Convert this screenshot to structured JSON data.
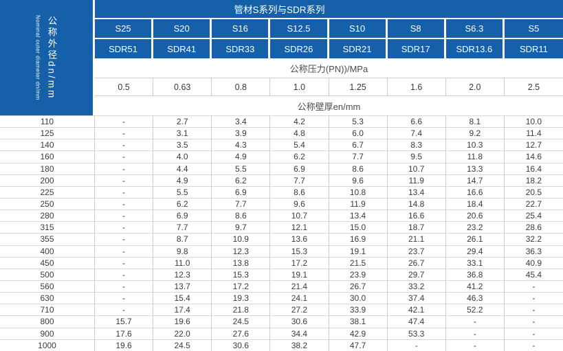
{
  "colors": {
    "header_blue": "#1560a8",
    "grid_line": "#cdcdcd",
    "text_dark": "#3a3a3a"
  },
  "left_header": {
    "cn_label": "公称外径dn/mm",
    "en_label": "Nominal outer diameter dn/mm"
  },
  "table": {
    "title": "管材S系列与SDR系列",
    "pressure_row_label": "公称压力(PN))/MPa",
    "thickness_row_label": "公称壁厚en/mm",
    "columns": [
      {
        "s": "S25",
        "sdr": "SDR51",
        "pn": "0.5"
      },
      {
        "s": "S20",
        "sdr": "SDR41",
        "pn": "0.63"
      },
      {
        "s": "S16",
        "sdr": "SDR33",
        "pn": "0.8"
      },
      {
        "s": "S12.5",
        "sdr": "SDR26",
        "pn": "1.0"
      },
      {
        "s": "S10",
        "sdr": "SDR21",
        "pn": "1.25"
      },
      {
        "s": "S8",
        "sdr": "SDR17",
        "pn": "1.6"
      },
      {
        "s": "S6.3",
        "sdr": "SDR13.6",
        "pn": "2.0"
      },
      {
        "s": "S5",
        "sdr": "SDR11",
        "pn": "2.5"
      }
    ],
    "rows": [
      {
        "dn": "110",
        "en_values": [
          "-",
          "2.7",
          "3.4",
          "4.2",
          "5.3",
          "6.6",
          "8.1",
          "10.0"
        ]
      },
      {
        "dn": "125",
        "en_values": [
          "-",
          "3.1",
          "3.9",
          "4.8",
          "6.0",
          "7.4",
          "9.2",
          "11.4"
        ]
      },
      {
        "dn": "140",
        "en_values": [
          "-",
          "3.5",
          "4.3",
          "5.4",
          "6.7",
          "8.3",
          "10.3",
          "12.7"
        ]
      },
      {
        "dn": "160",
        "en_values": [
          "-",
          "4.0",
          "4.9",
          "6.2",
          "7.7",
          "9.5",
          "11.8",
          "14.6"
        ]
      },
      {
        "dn": "180",
        "en_values": [
          "-",
          "4.4",
          "5.5",
          "6.9",
          "8.6",
          "10.7",
          "13.3",
          "16.4"
        ]
      },
      {
        "dn": "200",
        "en_values": [
          "-",
          "4.9",
          "6.2",
          "7.7",
          "9.6",
          "11.9",
          "14.7",
          "18.2"
        ]
      },
      {
        "dn": "225",
        "en_values": [
          "-",
          "5.5",
          "6.9",
          "8.6",
          "10.8",
          "13.4",
          "16.6",
          "20.5"
        ]
      },
      {
        "dn": "250",
        "en_values": [
          "-",
          "6.2",
          "7.7",
          "9.6",
          "11.9",
          "14.8",
          "18.4",
          "22.7"
        ]
      },
      {
        "dn": "280",
        "en_values": [
          "-",
          "6.9",
          "8.6",
          "10.7",
          "13.4",
          "16.6",
          "20.6",
          "25.4"
        ]
      },
      {
        "dn": "315",
        "en_values": [
          "-",
          "7.7",
          "9.7",
          "12.1",
          "15.0",
          "18.7",
          "23.2",
          "28.6"
        ]
      },
      {
        "dn": "355",
        "en_values": [
          "-",
          "8.7",
          "10.9",
          "13.6",
          "16.9",
          "21.1",
          "26.1",
          "32.2"
        ]
      },
      {
        "dn": "400",
        "en_values": [
          "-",
          "9.8",
          "12.3",
          "15.3",
          "19.1",
          "23.7",
          "29.4",
          "36.3"
        ]
      },
      {
        "dn": "450",
        "en_values": [
          "-",
          "11.0",
          "13.8",
          "17.2",
          "21.5",
          "26.7",
          "33.1",
          "40.9"
        ]
      },
      {
        "dn": "500",
        "en_values": [
          "-",
          "12.3",
          "15.3",
          "19.1",
          "23.9",
          "29.7",
          "36.8",
          "45.4"
        ]
      },
      {
        "dn": "560",
        "en_values": [
          "-",
          "13.7",
          "17.2",
          "21.4",
          "26.7",
          "33.2",
          "41.2",
          "-"
        ]
      },
      {
        "dn": "630",
        "en_values": [
          "-",
          "15.4",
          "19.3",
          "24.1",
          "30.0",
          "37.4",
          "46.3",
          "-"
        ]
      },
      {
        "dn": "710",
        "en_values": [
          "-",
          "17.4",
          "21.8",
          "27.2",
          "33.9",
          "42.1",
          "52.2",
          "-"
        ]
      },
      {
        "dn": "800",
        "en_values": [
          "15.7",
          "19.6",
          "24.5",
          "30.6",
          "38.1",
          "47.4",
          "-",
          "-"
        ]
      },
      {
        "dn": "900",
        "en_values": [
          "17.6",
          "22.0",
          "27.6",
          "34.4",
          "42.9",
          "53.3",
          "-",
          "-"
        ]
      },
      {
        "dn": "1000",
        "en_values": [
          "19.6",
          "24.5",
          "30.6",
          "38.2",
          "47.7",
          "-",
          "-",
          "-"
        ]
      }
    ]
  }
}
